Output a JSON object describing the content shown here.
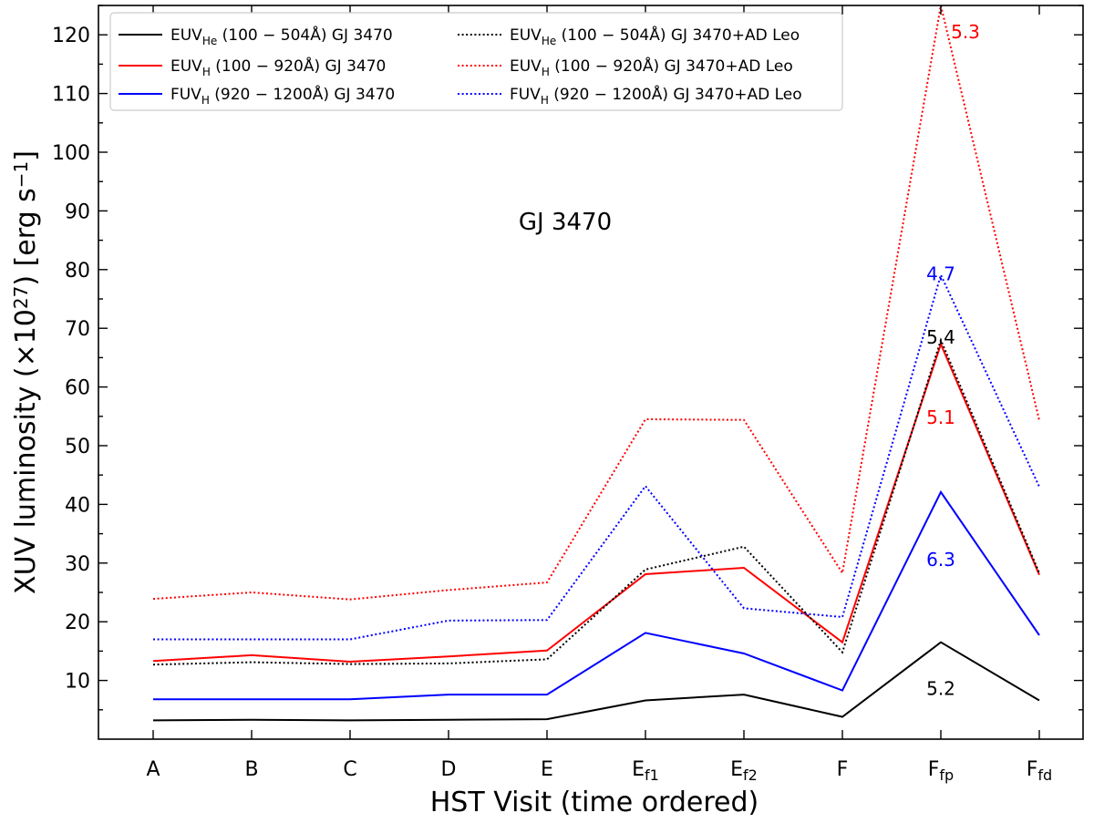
{
  "chart_data": {
    "type": "line",
    "title": "GJ 3470",
    "xlabel": "HST Visit (time ordered)",
    "ylabel": "XUV luminosity (×10",
    "ylabel_exp": "27",
    "ylabel_unit": ") [erg s",
    "ylabel_unit_exp": "−1",
    "ylabel_close": "]",
    "categories": [
      {
        "base": "A",
        "sub": ""
      },
      {
        "base": "B",
        "sub": ""
      },
      {
        "base": "C",
        "sub": ""
      },
      {
        "base": "D",
        "sub": ""
      },
      {
        "base": "E",
        "sub": ""
      },
      {
        "base": "E",
        "sub": "f1"
      },
      {
        "base": "E",
        "sub": "f2"
      },
      {
        "base": "F",
        "sub": ""
      },
      {
        "base": "F",
        "sub": "fp"
      },
      {
        "base": "F",
        "sub": "fd"
      }
    ],
    "ylim": [
      0,
      125
    ],
    "yticks": [
      10,
      20,
      30,
      40,
      50,
      60,
      70,
      80,
      90,
      100,
      110,
      120
    ],
    "yminor_step": 5,
    "legend_position": "top-left",
    "series": [
      {
        "name": "EUV_He GJ 3470",
        "label_main": "EUV",
        "label_sub": "He",
        "label_rest": " (100 − 504Å) GJ 3470",
        "color": "#000000",
        "style": "solid",
        "values": [
          3.2,
          3.3,
          3.2,
          3.3,
          3.4,
          6.6,
          7.6,
          3.8,
          16.5,
          6.6
        ]
      },
      {
        "name": "EUV_H GJ 3470",
        "label_main": "EUV",
        "label_sub": "H",
        "label_rest": " (100 − 920Å) GJ 3470",
        "color": "#ff0000",
        "style": "solid",
        "values": [
          13.3,
          14.3,
          13.2,
          14.1,
          15.1,
          28.1,
          29.2,
          16.5,
          67.3,
          28.0
        ]
      },
      {
        "name": "FUV_H GJ 3470",
        "label_main": "FUV",
        "label_sub": "H",
        "label_rest": " (920 − 1200Å) GJ 3470",
        "color": "#0000ff",
        "style": "solid",
        "values": [
          6.8,
          6.8,
          6.8,
          7.6,
          7.6,
          18.1,
          14.6,
          8.3,
          42.1,
          17.7
        ]
      },
      {
        "name": "EUV_He GJ 3470+AD Leo",
        "label_main": "EUV",
        "label_sub": "He",
        "label_rest": " (100 − 504Å) GJ 3470+AD Leo",
        "color": "#000000",
        "style": "dotted",
        "values": [
          12.7,
          13.1,
          12.8,
          12.9,
          13.6,
          28.9,
          32.8,
          14.8,
          68.0,
          28.3
        ]
      },
      {
        "name": "EUV_H GJ 3470+AD Leo",
        "label_main": "EUV",
        "label_sub": "H",
        "label_rest": " (100 − 920Å) GJ 3470+AD Leo",
        "color": "#ff0000",
        "style": "dotted",
        "values": [
          23.9,
          25.0,
          23.8,
          25.4,
          26.7,
          54.5,
          54.4,
          28.3,
          125.0,
          54.3
        ]
      },
      {
        "name": "FUV_H GJ 3470+AD Leo",
        "label_main": "FUV",
        "label_sub": "H",
        "label_rest": " (920 − 1200Å) GJ 3470+AD Leo",
        "color": "#0000ff",
        "style": "dotted",
        "values": [
          17.0,
          17.0,
          17.0,
          20.2,
          20.3,
          43.1,
          22.3,
          20.8,
          79.1,
          43.0
        ]
      }
    ],
    "annotations": [
      {
        "text": "5.3",
        "color": "#ff0000",
        "x_index": 8.25,
        "y": 120.5
      },
      {
        "text": "4.7",
        "color": "#0000ff",
        "x_index": 8.0,
        "y": 79.3
      },
      {
        "text": "5.4",
        "color": "#000000",
        "x_index": 8.0,
        "y": 68.5
      },
      {
        "text": "5.1",
        "color": "#ff0000",
        "x_index": 8.0,
        "y": 54.8
      },
      {
        "text": "6.3",
        "color": "#0000ff",
        "x_index": 8.0,
        "y": 30.6
      },
      {
        "text": "5.2",
        "color": "#000000",
        "x_index": 8.0,
        "y": 8.6
      }
    ]
  }
}
